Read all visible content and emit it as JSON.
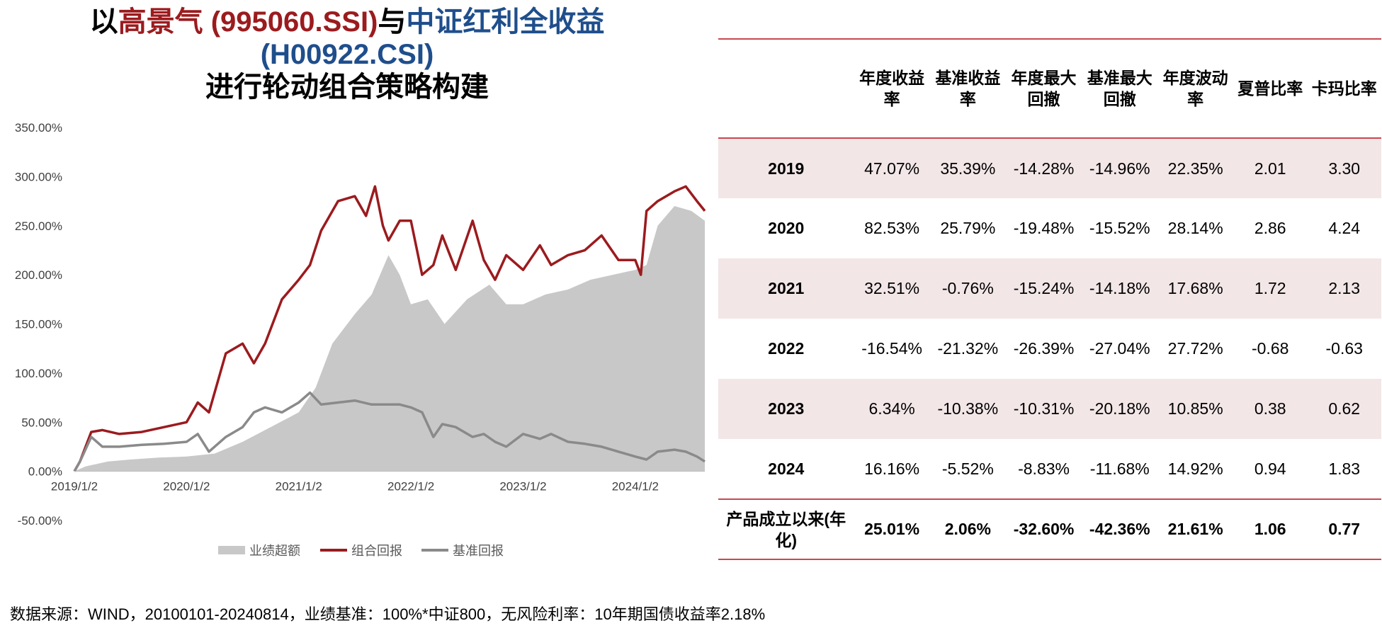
{
  "title": {
    "prefix": "以",
    "highlight1": "高景气 (995060.SSI)",
    "mid": "与",
    "highlight2": "中证红利全收益",
    "line2": "(H00922.CSI)",
    "line3": "进行轮动组合策略构建"
  },
  "colors": {
    "portfolio": "#9b1b1e",
    "benchmark": "#8a8a8a",
    "excess": "#c8c8c8",
    "accent": "#c9484f"
  },
  "chart_data": {
    "type": "line",
    "title": "",
    "xlabel": "",
    "ylabel": "",
    "ylim": [
      -50,
      350
    ],
    "yticks": [
      -50,
      0,
      50,
      100,
      150,
      200,
      250,
      300,
      350
    ],
    "ytick_labels": [
      "-50.00%",
      "0.00%",
      "50.00%",
      "100.00%",
      "150.00%",
      "200.00%",
      "250.00%",
      "300.00%",
      "350.00%"
    ],
    "xlim": [
      2019.0,
      2024.62
    ],
    "xticks": [
      2019.0,
      2020.0,
      2021.0,
      2022.0,
      2023.0,
      2024.0
    ],
    "xtick_labels": [
      "2019/1/2",
      "2020/1/2",
      "2021/1/2",
      "2022/1/2",
      "2023/1/2",
      "2024/1/2"
    ],
    "legend_position": "bottom",
    "series": [
      {
        "name": "业绩超额",
        "kind": "area",
        "color": "#c8c8c8",
        "x": [
          2019.0,
          2019.1,
          2019.3,
          2019.5,
          2019.75,
          2020.0,
          2020.25,
          2020.5,
          2020.75,
          2021.0,
          2021.15,
          2021.3,
          2021.5,
          2021.65,
          2021.8,
          2021.9,
          2022.0,
          2022.15,
          2022.3,
          2022.5,
          2022.7,
          2022.85,
          2023.0,
          2023.2,
          2023.4,
          2023.6,
          2023.8,
          2024.0,
          2024.1,
          2024.2,
          2024.35,
          2024.5,
          2024.62
        ],
        "y": [
          0,
          5,
          10,
          12,
          14,
          15,
          18,
          30,
          45,
          60,
          85,
          130,
          160,
          180,
          220,
          200,
          170,
          175,
          150,
          175,
          190,
          170,
          170,
          180,
          185,
          195,
          200,
          205,
          210,
          250,
          270,
          265,
          255
        ]
      },
      {
        "name": "组合回报",
        "kind": "line",
        "color": "#9b1b1e",
        "x": [
          2019.0,
          2019.05,
          2019.15,
          2019.25,
          2019.4,
          2019.6,
          2019.8,
          2020.0,
          2020.1,
          2020.2,
          2020.35,
          2020.5,
          2020.6,
          2020.7,
          2020.85,
          2021.0,
          2021.1,
          2021.2,
          2021.35,
          2021.5,
          2021.6,
          2021.68,
          2021.75,
          2021.8,
          2021.9,
          2022.0,
          2022.1,
          2022.2,
          2022.28,
          2022.4,
          2022.55,
          2022.65,
          2022.75,
          2022.85,
          2023.0,
          2023.15,
          2023.25,
          2023.4,
          2023.55,
          2023.7,
          2023.85,
          2024.0,
          2024.05,
          2024.1,
          2024.2,
          2024.35,
          2024.45,
          2024.55,
          2024.62
        ],
        "y": [
          0,
          10,
          40,
          42,
          38,
          40,
          45,
          50,
          70,
          60,
          120,
          130,
          110,
          130,
          175,
          195,
          210,
          245,
          275,
          280,
          260,
          290,
          250,
          235,
          255,
          255,
          200,
          210,
          240,
          205,
          255,
          215,
          195,
          220,
          205,
          230,
          210,
          220,
          225,
          240,
          215,
          215,
          200,
          265,
          275,
          285,
          290,
          275,
          265
        ]
      },
      {
        "name": "基准回报",
        "kind": "line",
        "color": "#8a8a8a",
        "x": [
          2019.0,
          2019.05,
          2019.15,
          2019.25,
          2019.4,
          2019.6,
          2019.8,
          2020.0,
          2020.1,
          2020.2,
          2020.35,
          2020.5,
          2020.6,
          2020.7,
          2020.85,
          2021.0,
          2021.1,
          2021.2,
          2021.35,
          2021.5,
          2021.65,
          2021.8,
          2021.9,
          2022.0,
          2022.1,
          2022.2,
          2022.28,
          2022.4,
          2022.55,
          2022.65,
          2022.75,
          2022.85,
          2023.0,
          2023.15,
          2023.25,
          2023.4,
          2023.55,
          2023.7,
          2023.85,
          2024.0,
          2024.1,
          2024.2,
          2024.35,
          2024.45,
          2024.55,
          2024.62
        ],
        "y": [
          0,
          10,
          35,
          25,
          25,
          27,
          28,
          30,
          38,
          20,
          35,
          45,
          60,
          65,
          60,
          70,
          80,
          68,
          70,
          72,
          68,
          68,
          68,
          65,
          60,
          35,
          48,
          45,
          35,
          38,
          30,
          25,
          38,
          33,
          38,
          30,
          28,
          25,
          20,
          15,
          12,
          20,
          22,
          20,
          15,
          10
        ]
      }
    ]
  },
  "table": {
    "headers": [
      "",
      "年度收益率",
      "基准收益率",
      "年度最大回撤",
      "基准最大回撤",
      "年度波动率",
      "夏普比率",
      "卡玛比率"
    ],
    "rows": [
      [
        "2019",
        "47.07%",
        "35.39%",
        "-14.28%",
        "-14.96%",
        "22.35%",
        "2.01",
        "3.30"
      ],
      [
        "2020",
        "82.53%",
        "25.79%",
        "-19.48%",
        "-15.52%",
        "28.14%",
        "2.86",
        "4.24"
      ],
      [
        "2021",
        "32.51%",
        "-0.76%",
        "-15.24%",
        "-14.18%",
        "17.68%",
        "1.72",
        "2.13"
      ],
      [
        "2022",
        "-16.54%",
        "-21.32%",
        "-26.39%",
        "-27.04%",
        "27.72%",
        "-0.68",
        "-0.63"
      ],
      [
        "2023",
        "6.34%",
        "-10.38%",
        "-10.31%",
        "-20.18%",
        "10.85%",
        "0.38",
        "0.62"
      ],
      [
        "2024",
        "16.16%",
        "-5.52%",
        "-8.83%",
        "-11.68%",
        "14.92%",
        "0.94",
        "1.83"
      ]
    ],
    "summary": [
      "产品成立以来(年化)",
      "25.01%",
      "2.06%",
      "-32.60%",
      "-42.36%",
      "21.61%",
      "1.06",
      "0.77"
    ]
  },
  "source_note": "数据来源：WIND，20100101-20240814，业绩基准：100%*中证800，无风险利率：10年期国债收益率2.18%"
}
